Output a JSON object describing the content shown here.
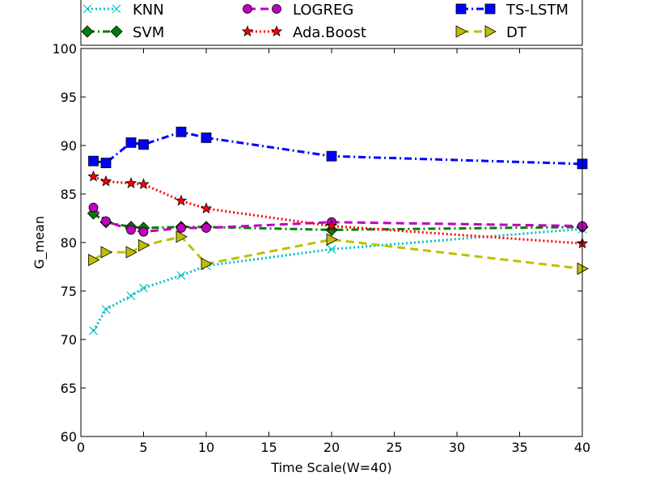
{
  "chart_data": {
    "type": "line",
    "title": "",
    "xlabel": "Time Scale(W=40)",
    "ylabel": "G_mean",
    "xlim": [
      0,
      40
    ],
    "ylim": [
      60,
      100
    ],
    "xticks": [
      0,
      5,
      10,
      15,
      20,
      25,
      30,
      35,
      40
    ],
    "yticks": [
      60,
      65,
      70,
      75,
      80,
      85,
      90,
      95,
      100
    ],
    "grid": false,
    "legend": "top (above plot, 3 columns)",
    "x": [
      1,
      2,
      4,
      5,
      8,
      10,
      20,
      40
    ],
    "series": [
      {
        "name": "KNN",
        "values": [
          70.9,
          73.1,
          74.5,
          75.3,
          76.6,
          77.6,
          79.3,
          81.4
        ],
        "color": "#00bfbf",
        "marker": "x",
        "dash": "dotted"
      },
      {
        "name": "SVM",
        "values": [
          83.0,
          82.1,
          81.6,
          81.5,
          81.6,
          81.6,
          81.3,
          81.6
        ],
        "color": "#008000",
        "marker": "diamond",
        "dash": "dashdot"
      },
      {
        "name": "LOGREG",
        "values": [
          83.6,
          82.2,
          81.3,
          81.1,
          81.5,
          81.5,
          82.1,
          81.7
        ],
        "color": "#bf00bf",
        "marker": "circle",
        "dash": "dashed"
      },
      {
        "name": "Ada.Boost",
        "values": [
          86.8,
          86.3,
          86.1,
          86.0,
          84.3,
          83.5,
          81.7,
          79.9
        ],
        "color": "#ff0000",
        "marker": "star",
        "dash": "dotted"
      },
      {
        "name": "TS-LSTM",
        "values": [
          88.4,
          88.2,
          90.3,
          90.1,
          91.4,
          90.8,
          88.9,
          88.1
        ],
        "color": "#0000ff",
        "marker": "square",
        "dash": "dashdot"
      },
      {
        "name": "DT",
        "values": [
          78.2,
          79.0,
          79.0,
          79.7,
          80.6,
          77.8,
          80.3,
          77.3
        ],
        "color": "#bfbf00",
        "marker": "triangle-right",
        "dash": "dashed"
      }
    ]
  }
}
